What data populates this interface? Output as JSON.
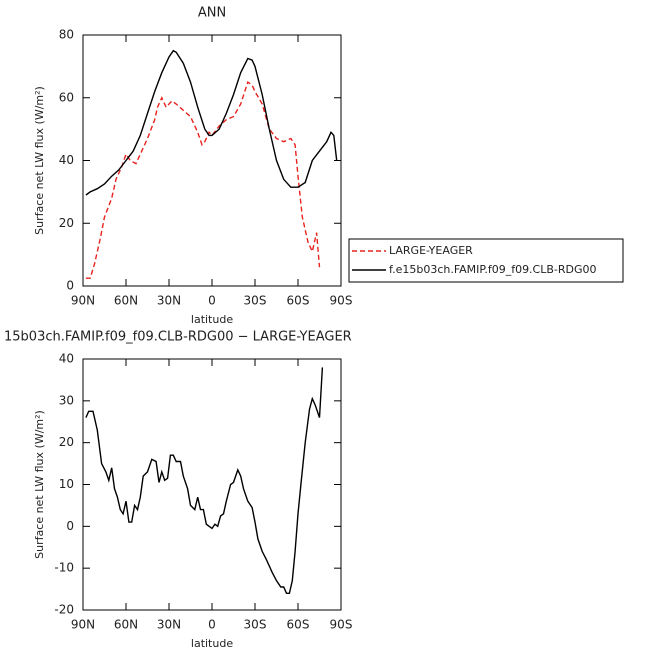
{
  "chart_data": [
    {
      "type": "line",
      "title": "ANN",
      "xlabel": "latitude",
      "ylabel": "Surface net LW flux (W/m²)",
      "xlim": [
        90,
        -90
      ],
      "ylim": [
        0,
        80
      ],
      "xticks": [
        {
          "value": 90,
          "label": "90N"
        },
        {
          "value": 60,
          "label": "60N"
        },
        {
          "value": 30,
          "label": "30N"
        },
        0,
        {
          "value": -30,
          "label": "30S"
        },
        {
          "value": -60,
          "label": "60S"
        },
        {
          "value": -90,
          "label": "90S"
        }
      ],
      "yticks": [
        0,
        20,
        40,
        60,
        80
      ],
      "legend": "right",
      "series": [
        {
          "name": "LARGE-YEAGER",
          "color": "#e8221e",
          "linestyle": "dashed",
          "x": [
            88,
            85,
            82,
            78,
            75,
            70,
            67,
            63,
            60,
            57,
            53,
            50,
            45,
            40,
            38,
            35,
            32,
            28,
            25,
            20,
            15,
            10,
            7,
            5,
            2,
            0,
            -5,
            -10,
            -15,
            -20,
            -25,
            -28,
            -30,
            -35,
            -40,
            -45,
            -50,
            -55,
            -58,
            -60,
            -63,
            -67,
            -70,
            -73,
            -75
          ],
          "values": [
            2.5,
            2.5,
            7,
            15,
            22,
            28,
            34,
            38,
            42,
            40,
            39,
            42,
            47,
            53,
            57,
            60,
            57,
            59,
            58,
            56,
            54,
            49,
            45,
            46,
            49,
            48,
            51,
            53,
            54,
            58,
            65,
            64,
            62,
            58,
            50,
            47,
            46,
            47,
            45,
            35,
            22,
            14,
            11,
            17,
            6
          ]
        },
        {
          "name": "f.e15b03ch.FAMIP.f09_f09.CLB-RDG00",
          "color": "#000000",
          "linestyle": "solid",
          "x": [
            88,
            85,
            80,
            75,
            70,
            65,
            60,
            55,
            50,
            45,
            40,
            35,
            30,
            27,
            25,
            20,
            15,
            10,
            5,
            2,
            0,
            -5,
            -10,
            -15,
            -20,
            -25,
            -28,
            -30,
            -35,
            -40,
            -45,
            -50,
            -55,
            -60,
            -65,
            -70,
            -75,
            -80,
            -83,
            -85,
            -87
          ],
          "values": [
            29,
            30,
            31,
            32.5,
            35,
            37,
            40,
            43,
            48,
            55,
            62,
            68,
            73,
            75,
            74.5,
            71,
            65,
            57,
            50,
            48,
            48,
            50,
            55,
            61,
            68,
            72.5,
            72,
            70,
            61,
            50,
            40,
            34,
            31.5,
            31.5,
            33,
            40,
            43,
            46,
            49,
            48,
            40
          ]
        }
      ]
    },
    {
      "type": "line",
      "title": "15b03ch.FAMIP.f09_f09.CLB-RDG00 − LARGE-YEAGER",
      "xlabel": "latitude",
      "ylabel": "Surface net LW flux (W/m²)",
      "xlim": [
        90,
        -90
      ],
      "ylim": [
        -20,
        40
      ],
      "xticks": [
        {
          "value": 90,
          "label": "90N"
        },
        {
          "value": 60,
          "label": "60N"
        },
        {
          "value": 30,
          "label": "30N"
        },
        0,
        {
          "value": -30,
          "label": "30S"
        },
        {
          "value": -60,
          "label": "60S"
        },
        {
          "value": -90,
          "label": "90S"
        }
      ],
      "yticks": [
        -20,
        -10,
        0,
        10,
        20,
        30,
        40
      ],
      "series": [
        {
          "color": "#000000",
          "linestyle": "solid",
          "x": [
            88,
            86,
            83,
            80,
            77,
            74,
            72,
            70,
            68,
            66,
            64,
            62,
            60,
            58,
            56,
            54,
            52,
            50,
            48,
            45,
            42,
            39,
            37,
            35,
            33,
            31,
            29,
            27,
            25,
            22,
            20,
            17,
            15,
            12,
            10,
            8,
            6,
            4,
            2,
            0,
            -2,
            -4,
            -6,
            -8,
            -10,
            -13,
            -15,
            -18,
            -20,
            -22,
            -25,
            -28,
            -30,
            -32,
            -35,
            -38,
            -42,
            -45,
            -48,
            -50,
            -52,
            -54,
            -56,
            -58,
            -60,
            -62,
            -65,
            -68,
            -70,
            -72,
            -75,
            -77
          ],
          "values": [
            26,
            27.5,
            27.5,
            23,
            15,
            13,
            11,
            14,
            9,
            7,
            4,
            3,
            6,
            1,
            1,
            5,
            4,
            7,
            12,
            13,
            16,
            15.5,
            10.5,
            13,
            11,
            11.5,
            17,
            17,
            15.5,
            15.5,
            12,
            9,
            5,
            4,
            7,
            4,
            4,
            0.5,
            0,
            -0.5,
            0.5,
            0,
            2.5,
            3,
            6,
            10,
            10.5,
            13.5,
            12,
            9,
            6,
            4.5,
            1,
            -3,
            -6,
            -8,
            -11,
            -13,
            -14.5,
            -14.5,
            -16,
            -16,
            -13,
            -6,
            3,
            10,
            20,
            28,
            30.5,
            29,
            26,
            38
          ]
        }
      ]
    }
  ]
}
